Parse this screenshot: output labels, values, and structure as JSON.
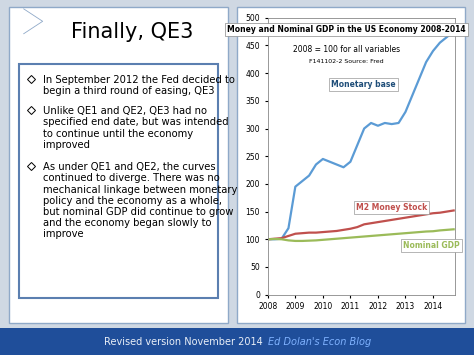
{
  "slide": {
    "title": "Finally, QE3",
    "bullets": [
      "In September 2012 the Fed decided to begin a third round of easing, QE3",
      "Unlike QE1 and QE2, QE3 had no specified end date, but was intended to continue until the economy improved",
      "As under QE1 and QE2, the curves continued to diverge. There was no mechanical linkage between monetary policy and the economy as a whole, but nominal GDP did continue to grow and the economy began slowly to improve"
    ],
    "footer": "Revised version November 2014",
    "footer_link": "Ed Dolan's Econ Blog"
  },
  "chart_data": {
    "type": "line",
    "title": "Money and Nominal GDP in the US Economy 2008-2014",
    "subtitle": "2008 = 100 for all variables",
    "source": "F141102-2 Source: Fred",
    "x": [
      2008.0,
      2008.25,
      2008.5,
      2008.75,
      2009.0,
      2009.25,
      2009.5,
      2009.75,
      2010.0,
      2010.25,
      2010.5,
      2010.75,
      2011.0,
      2011.25,
      2011.5,
      2011.75,
      2012.0,
      2012.25,
      2012.5,
      2012.75,
      2013.0,
      2013.25,
      2013.5,
      2013.75,
      2014.0,
      2014.25,
      2014.5,
      2014.75
    ],
    "series": [
      {
        "name": "Monetary base",
        "color": "#5b9bd5",
        "values": [
          100,
          100,
          101,
          120,
          195,
          205,
          215,
          235,
          245,
          240,
          235,
          230,
          240,
          270,
          300,
          310,
          305,
          310,
          308,
          310,
          330,
          360,
          390,
          420,
          440,
          455,
          465,
          475
        ]
      },
      {
        "name": "M2 Money Stock",
        "color": "#c0504d",
        "values": [
          100,
          101,
          102,
          106,
          110,
          111,
          112,
          112,
          113,
          114,
          115,
          117,
          119,
          122,
          127,
          129,
          131,
          133,
          135,
          137,
          139,
          141,
          143,
          145,
          147,
          148,
          150,
          152
        ]
      },
      {
        "name": "Nominal GDP",
        "color": "#9bbb59",
        "values": [
          100,
          100.5,
          100,
          98,
          97,
          97,
          97.5,
          98,
          99,
          100,
          101,
          102,
          103,
          104,
          105,
          106,
          107,
          108,
          109,
          110,
          111,
          112,
          113,
          114,
          114.5,
          116,
          117,
          118
        ]
      }
    ],
    "xlim": [
      2008,
      2014.8
    ],
    "xticks": [
      2008,
      2009,
      2010,
      2011,
      2012,
      2013,
      2014
    ],
    "ylim": [
      0,
      500
    ],
    "yticks": [
      0,
      50,
      100,
      150,
      200,
      250,
      300,
      350,
      400,
      450,
      500
    ],
    "grid": false
  }
}
